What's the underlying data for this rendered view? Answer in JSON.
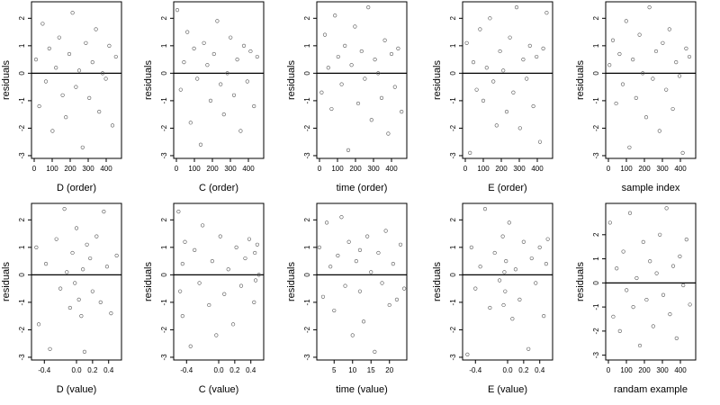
{
  "chart_data": [
    {
      "type": "scatter",
      "xlabel": "D (order)",
      "ylabel": "residuals",
      "xlim": [
        -15,
        485
      ],
      "ylim": [
        -3.1,
        2.6
      ],
      "xticks": [
        0,
        100,
        200,
        300,
        400
      ],
      "yticks": [
        -3,
        -2,
        -1,
        0,
        1,
        2
      ],
      "hline": 0,
      "x": [
        10,
        28,
        47,
        65,
        84,
        102,
        121,
        139,
        158,
        176,
        195,
        213,
        232,
        250,
        269,
        287,
        306,
        324,
        343,
        361,
        380,
        398,
        417,
        435,
        454
      ],
      "values": [
        0.5,
        -1.2,
        1.8,
        -0.3,
        0.9,
        -2.1,
        0.2,
        1.3,
        -0.8,
        -1.6,
        0.7,
        2.2,
        -0.5,
        0.1,
        -2.7,
        1.1,
        -0.9,
        0.4,
        1.6,
        -1.4,
        0.0,
        -0.2,
        1.0,
        -1.9,
        0.6
      ]
    },
    {
      "type": "scatter",
      "xlabel": "C (order)",
      "ylabel": "residuals",
      "xlim": [
        -15,
        485
      ],
      "ylim": [
        -3.1,
        2.6
      ],
      "xticks": [
        0,
        100,
        200,
        300,
        400
      ],
      "yticks": [
        -3,
        -2,
        -1,
        0,
        1,
        2
      ],
      "hline": 0,
      "x": [
        5,
        24,
        42,
        61,
        79,
        98,
        116,
        135,
        153,
        172,
        190,
        209,
        227,
        246,
        264,
        283,
        301,
        320,
        338,
        357,
        375,
        394,
        412,
        431,
        449
      ],
      "values": [
        2.3,
        -0.6,
        0.4,
        1.5,
        -1.8,
        0.9,
        -0.2,
        -2.6,
        1.1,
        0.3,
        -1.0,
        0.7,
        1.9,
        -0.4,
        -1.5,
        0.0,
        1.3,
        -0.8,
        0.5,
        -2.1,
        1.0,
        -0.3,
        0.8,
        -1.2,
        0.6
      ]
    },
    {
      "type": "scatter",
      "xlabel": "time (order)",
      "ylabel": "residuals",
      "xlim": [
        -15,
        485
      ],
      "ylim": [
        -3.1,
        2.6
      ],
      "xticks": [
        0,
        100,
        200,
        300,
        400
      ],
      "yticks": [
        -3,
        -2,
        -1,
        0,
        1,
        2
      ],
      "hline": 0,
      "x": [
        12,
        30,
        49,
        67,
        86,
        104,
        123,
        141,
        160,
        178,
        197,
        215,
        234,
        252,
        271,
        289,
        308,
        326,
        345,
        363,
        382,
        400,
        419,
        437,
        456
      ],
      "values": [
        -0.7,
        1.4,
        0.2,
        -1.3,
        2.1,
        0.6,
        -0.4,
        1.0,
        -2.8,
        0.3,
        1.7,
        -1.1,
        0.8,
        -0.2,
        2.4,
        -1.7,
        0.5,
        0.0,
        -0.9,
        1.2,
        -2.2,
        0.7,
        -0.5,
        0.9,
        -1.4
      ]
    },
    {
      "type": "scatter",
      "xlabel": "E (order)",
      "ylabel": "residuals",
      "xlim": [
        -15,
        485
      ],
      "ylim": [
        -3.1,
        2.6
      ],
      "xticks": [
        0,
        100,
        200,
        300,
        400
      ],
      "yticks": [
        -3,
        -2,
        -1,
        0,
        1,
        2
      ],
      "hline": 0,
      "x": [
        8,
        26,
        45,
        63,
        82,
        100,
        119,
        137,
        156,
        174,
        193,
        211,
        230,
        248,
        267,
        285,
        304,
        322,
        341,
        359,
        378,
        396,
        415,
        433,
        452
      ],
      "values": [
        1.1,
        -2.9,
        0.4,
        -0.6,
        1.6,
        -1.0,
        0.2,
        2.0,
        -0.3,
        -1.9,
        0.8,
        0.1,
        -1.4,
        1.3,
        -0.7,
        2.4,
        -2.0,
        0.5,
        -0.2,
        1.0,
        -1.2,
        0.6,
        -2.5,
        0.9,
        2.2
      ]
    },
    {
      "type": "scatter",
      "xlabel": "sample index",
      "ylabel": "residuals",
      "xlim": [
        -15,
        485
      ],
      "ylim": [
        -3.1,
        2.6
      ],
      "xticks": [
        0,
        100,
        200,
        300,
        400
      ],
      "yticks": [
        -3,
        -2,
        -1,
        0,
        1,
        2
      ],
      "hline": 0,
      "x": [
        6,
        25,
        43,
        62,
        80,
        99,
        117,
        136,
        154,
        173,
        191,
        210,
        228,
        247,
        265,
        284,
        302,
        321,
        339,
        358,
        376,
        395,
        413,
        432,
        450
      ],
      "values": [
        0.3,
        1.2,
        -1.1,
        0.7,
        -0.4,
        1.9,
        -2.7,
        0.5,
        -0.9,
        1.4,
        0.0,
        -1.6,
        2.4,
        -0.2,
        0.8,
        -2.1,
        1.1,
        -0.6,
        1.6,
        -1.3,
        0.4,
        -0.1,
        -2.9,
        0.9,
        0.6
      ]
    },
    {
      "type": "scatter",
      "xlabel": "D (value)",
      "ylabel": "residuals",
      "xlim": [
        -0.56,
        0.56
      ],
      "ylim": [
        -3.1,
        2.6
      ],
      "xticks": [
        -0.4,
        {
          "value": 0,
          "label": "0.0"
        },
        0.2,
        0.4
      ],
      "yticks": [
        -3,
        -2,
        -1,
        0,
        1,
        2
      ],
      "hline": 0,
      "x": [
        -0.5,
        -0.47,
        -0.38,
        -0.33,
        -0.25,
        -0.2,
        -0.15,
        -0.12,
        -0.08,
        -0.05,
        -0.02,
        0.0,
        0.03,
        0.06,
        0.08,
        0.1,
        0.13,
        0.17,
        0.2,
        0.25,
        0.3,
        0.34,
        0.38,
        0.43,
        0.5
      ],
      "values": [
        1.0,
        -1.8,
        0.4,
        -2.7,
        1.3,
        -0.5,
        2.4,
        0.1,
        -1.2,
        0.8,
        -0.3,
        1.7,
        -0.9,
        -1.5,
        0.2,
        -2.8,
        1.1,
        0.6,
        -0.6,
        1.4,
        -1.0,
        2.3,
        0.3,
        -1.4,
        0.7
      ]
    },
    {
      "type": "scatter",
      "xlabel": "C (value)",
      "ylabel": "residuals",
      "xlim": [
        -0.56,
        0.56
      ],
      "ylim": [
        -3.1,
        2.6
      ],
      "xticks": [
        -0.4,
        {
          "value": 0,
          "label": "0.0"
        },
        0.2,
        0.4
      ],
      "yticks": [
        -3,
        -2,
        -1,
        0,
        1,
        2
      ],
      "hline": 0,
      "x": [
        -0.5,
        -0.48,
        -0.45,
        -0.45,
        -0.42,
        -0.35,
        -0.3,
        -0.24,
        -0.2,
        -0.12,
        -0.08,
        -0.03,
        0.02,
        0.07,
        0.12,
        0.18,
        0.22,
        0.28,
        0.33,
        0.38,
        0.44,
        0.45,
        0.46,
        0.48,
        0.5
      ],
      "values": [
        2.3,
        -0.6,
        0.4,
        -1.5,
        1.2,
        -2.6,
        0.9,
        -0.3,
        1.8,
        -1.1,
        0.5,
        -2.2,
        1.4,
        -0.7,
        0.2,
        -1.8,
        1.0,
        -0.4,
        0.6,
        1.3,
        -1.0,
        0.8,
        -0.2,
        1.1,
        0.0
      ]
    },
    {
      "type": "scatter",
      "xlabel": "time (value)",
      "ylabel": "residuals",
      "xlim": [
        0.3,
        24.7
      ],
      "ylim": [
        -3.1,
        2.6
      ],
      "xticks": [
        5,
        10,
        15,
        20
      ],
      "yticks": [
        -3,
        -2,
        -1,
        0,
        1,
        2
      ],
      "hline": 0,
      "x": [
        1,
        2,
        3,
        4,
        5,
        6,
        7,
        8,
        9,
        10,
        11,
        12,
        12,
        13,
        14,
        15,
        16,
        17,
        18,
        19,
        20,
        21,
        22,
        23,
        24
      ],
      "values": [
        1.0,
        -0.8,
        1.9,
        0.3,
        -1.3,
        0.7,
        2.1,
        -0.4,
        1.2,
        -2.2,
        0.5,
        -0.6,
        0.9,
        -1.7,
        1.4,
        0.1,
        -2.8,
        0.8,
        -0.3,
        1.6,
        -1.1,
        0.4,
        -0.9,
        1.1,
        -0.5
      ]
    },
    {
      "type": "scatter",
      "xlabel": "E (value)",
      "ylabel": "residuals",
      "xlim": [
        -0.56,
        0.56
      ],
      "ylim": [
        -3.1,
        2.6
      ],
      "xticks": [
        -0.4,
        {
          "value": 0,
          "label": "0.0"
        },
        0.2,
        0.4
      ],
      "yticks": [
        -3,
        -2,
        -1,
        0,
        1,
        2
      ],
      "hline": 0,
      "x": [
        -0.5,
        -0.45,
        -0.4,
        -0.34,
        -0.28,
        -0.22,
        -0.16,
        -0.1,
        -0.06,
        -0.05,
        -0.04,
        -0.03,
        -0.02,
        0.02,
        0.06,
        0.1,
        0.15,
        0.2,
        0.26,
        0.3,
        0.35,
        0.4,
        0.45,
        0.48,
        0.5
      ],
      "values": [
        -2.9,
        1.0,
        -0.5,
        0.3,
        2.4,
        -1.2,
        0.8,
        -0.2,
        1.4,
        -1.1,
        0.1,
        -0.6,
        0.5,
        1.9,
        -1.6,
        0.2,
        -0.9,
        1.2,
        -2.7,
        0.6,
        -0.3,
        1.0,
        -1.5,
        0.4,
        1.3
      ]
    },
    {
      "type": "scatter",
      "xlabel": "randam example",
      "ylabel": "residuals",
      "xlim": [
        -15,
        485
      ],
      "ylim": [
        -3.2,
        3.3
      ],
      "xticks": [
        0,
        100,
        200,
        300,
        400
      ],
      "yticks": [
        -3,
        -2,
        -1,
        0,
        1,
        2
      ],
      "hline": 0,
      "x": [
        9,
        27,
        46,
        64,
        83,
        101,
        120,
        138,
        157,
        175,
        194,
        212,
        231,
        249,
        268,
        286,
        305,
        323,
        342,
        360,
        379,
        397,
        416,
        434,
        453
      ],
      "values": [
        2.5,
        -1.4,
        0.6,
        -2.0,
        1.3,
        -0.3,
        2.9,
        -1.0,
        0.2,
        -2.6,
        1.7,
        -0.7,
        0.9,
        -1.8,
        0.4,
        2.0,
        -0.5,
        3.1,
        -1.3,
        0.7,
        -2.3,
        1.1,
        -0.1,
        1.8,
        -0.9
      ]
    }
  ]
}
